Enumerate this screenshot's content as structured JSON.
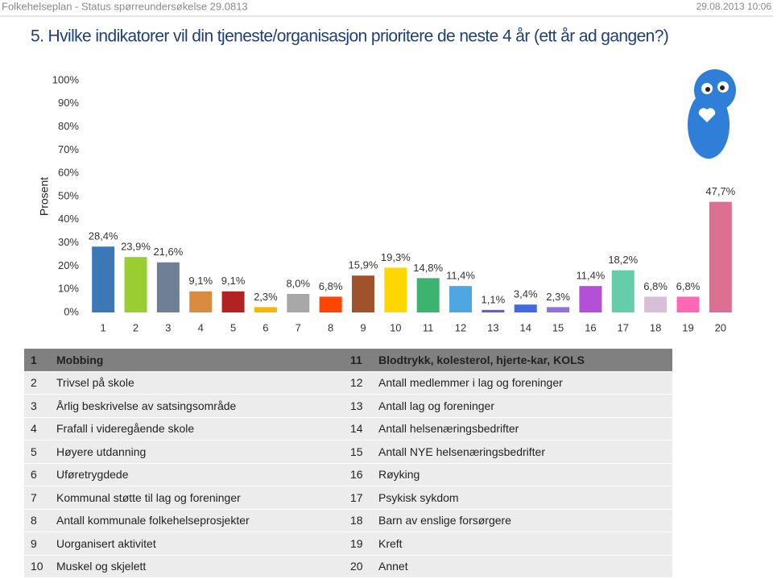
{
  "header": {
    "left": "Folkehelseplan - Status spørreundersøkelse 29.0813",
    "right": "29.08.2013 10:06"
  },
  "chart_data": {
    "type": "bar",
    "title": "5. Hvilke indikatorer vil din tjeneste/organisasjon prioritere de neste 4 år (ett år ad gangen?)",
    "ylabel": "Prosent",
    "categories": [
      "1",
      "2",
      "3",
      "4",
      "5",
      "6",
      "7",
      "8",
      "9",
      "10",
      "11",
      "12",
      "13",
      "14",
      "15",
      "16",
      "17",
      "18",
      "19",
      "20"
    ],
    "values": [
      28.4,
      23.9,
      21.6,
      9.1,
      9.1,
      2.3,
      8.0,
      6.8,
      15.9,
      19.3,
      14.8,
      11.4,
      1.1,
      3.4,
      2.3,
      11.4,
      18.2,
      6.8,
      6.8,
      47.7
    ],
    "value_labels": [
      "28,4%",
      "23,9%",
      "21,6%",
      "9,1%",
      "9,1%",
      "2,3%",
      "8,0%",
      "6,8%",
      "15,9%",
      "19,3%",
      "14,8%",
      "11,4%",
      "1,1%",
      "3,4%",
      "2,3%",
      "11,4%",
      "18,2%",
      "6,8%",
      "6,8%",
      "47,7%"
    ],
    "colors": [
      "#3b78b5",
      "#9acd32",
      "#6f7f96",
      "#d98c40",
      "#b22222",
      "#f5b800",
      "#a8a8a8",
      "#ff4500",
      "#a0522d",
      "#ffd700",
      "#3cb371",
      "#4ea7e0",
      "#6a5acd",
      "#4169e1",
      "#9370db",
      "#b44fd8",
      "#66cdaa",
      "#d8bfd8",
      "#ff69b4",
      "#db7093"
    ],
    "ylim": [
      0,
      100
    ],
    "yticks": [
      {
        "value": 0,
        "label": "0%"
      },
      {
        "value": 10,
        "label": "10%"
      },
      {
        "value": 20,
        "label": "20%"
      },
      {
        "value": 30,
        "label": "30%"
      },
      {
        "value": 40,
        "label": "40%"
      },
      {
        "value": 50,
        "label": "50%"
      },
      {
        "value": 60,
        "label": "60%"
      },
      {
        "value": 70,
        "label": "70%"
      },
      {
        "value": 80,
        "label": "80%"
      },
      {
        "value": 90,
        "label": "90%"
      },
      {
        "value": 100,
        "label": "100%"
      }
    ],
    "grid": false
  },
  "table": {
    "rows": [
      [
        "1",
        "Mobbing",
        "11",
        "Blodtrykk, kolesterol, hjerte-kar, KOLS"
      ],
      [
        "2",
        "Trivsel på skole",
        "12",
        "Antall medlemmer i lag og foreninger"
      ],
      [
        "3",
        "Årlig beskrivelse av satsingsområde",
        "13",
        "Antall lag og foreninger"
      ],
      [
        "4",
        "Frafall i videregående skole",
        "14",
        "Antall helsenæringsbedrifter"
      ],
      [
        "5",
        "Høyere utdanning",
        "15",
        "Antall NYE helsenæringsbedrifter"
      ],
      [
        "6",
        "Uføretrygdede",
        "16",
        "Røyking"
      ],
      [
        "7",
        "Kommunal støtte til lag og foreninger",
        "17",
        "Psykisk sykdom"
      ],
      [
        "8",
        "Antall kommunale folkehelseprosjekter",
        "18",
        "Barn av enslige forsørgere"
      ],
      [
        "9",
        "Uorganisert aktivitet",
        "19",
        "Kreft"
      ],
      [
        "10",
        "Muskel og skjelett",
        "20",
        "Annet"
      ]
    ]
  }
}
